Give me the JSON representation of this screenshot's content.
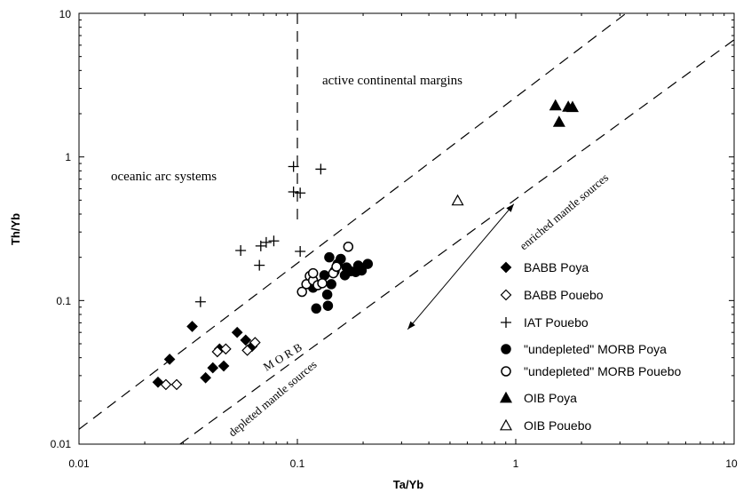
{
  "chart_data": {
    "type": "scatter",
    "xlabel": "Ta/Yb",
    "ylabel": "Th/Yb",
    "x_scale": "log",
    "y_scale": "log",
    "xlim": [
      0.01,
      10
    ],
    "ylim": [
      0.01,
      10
    ],
    "x_ticks": [
      "0.01",
      "0.1",
      "1",
      "10"
    ],
    "y_ticks": [
      "0.01",
      "0.1",
      "1",
      "10"
    ],
    "legend_position": "lower-right",
    "grid": false,
    "annotations": {
      "acm": "active continental margins",
      "oas": "oceanic arc systems",
      "morb": "M O R B",
      "enriched": "enriched mantle sources",
      "depleted": "depleted mantle sources"
    },
    "series": [
      {
        "name": "BABB Poya",
        "marker": "diamond-filled",
        "points": [
          [
            0.023,
            0.027
          ],
          [
            0.026,
            0.039
          ],
          [
            0.033,
            0.066
          ],
          [
            0.038,
            0.029
          ],
          [
            0.041,
            0.034
          ],
          [
            0.044,
            0.046
          ],
          [
            0.046,
            0.035
          ],
          [
            0.053,
            0.06
          ],
          [
            0.058,
            0.053
          ],
          [
            0.062,
            0.048
          ]
        ]
      },
      {
        "name": "BABB  Pouebo",
        "marker": "diamond-open",
        "points": [
          [
            0.025,
            0.026
          ],
          [
            0.028,
            0.026
          ],
          [
            0.043,
            0.044
          ],
          [
            0.047,
            0.046
          ],
          [
            0.059,
            0.045
          ],
          [
            0.064,
            0.051
          ]
        ]
      },
      {
        "name": "IAT Pouebo",
        "marker": "plus",
        "points": [
          [
            0.036,
            0.098
          ],
          [
            0.055,
            0.223
          ],
          [
            0.067,
            0.176
          ],
          [
            0.068,
            0.24
          ],
          [
            0.072,
            0.254
          ],
          [
            0.078,
            0.26
          ],
          [
            0.096,
            0.857
          ],
          [
            0.096,
            0.571
          ],
          [
            0.103,
            0.561
          ],
          [
            0.103,
            0.22
          ],
          [
            0.128,
            0.822
          ]
        ]
      },
      {
        "name": "\"undepleted\" MORB Poya",
        "marker": "circle-filled",
        "points": [
          [
            0.118,
            0.123
          ],
          [
            0.122,
            0.088
          ],
          [
            0.138,
            0.092
          ],
          [
            0.137,
            0.11
          ],
          [
            0.133,
            0.15
          ],
          [
            0.143,
            0.13
          ],
          [
            0.148,
            0.16
          ],
          [
            0.153,
            0.18
          ],
          [
            0.158,
            0.195
          ],
          [
            0.165,
            0.15
          ],
          [
            0.168,
            0.17
          ],
          [
            0.175,
            0.16
          ],
          [
            0.185,
            0.158
          ],
          [
            0.19,
            0.175
          ],
          [
            0.197,
            0.162
          ],
          [
            0.21,
            0.18
          ],
          [
            0.14,
            0.2
          ]
        ]
      },
      {
        "name": "\"undepleted\" MORB Pouebo",
        "marker": "circle-open",
        "points": [
          [
            0.105,
            0.115
          ],
          [
            0.11,
            0.13
          ],
          [
            0.114,
            0.148
          ],
          [
            0.118,
            0.138
          ],
          [
            0.124,
            0.128
          ],
          [
            0.13,
            0.132
          ],
          [
            0.146,
            0.155
          ],
          [
            0.151,
            0.172
          ],
          [
            0.171,
            0.237
          ],
          [
            0.118,
            0.155
          ]
        ]
      },
      {
        "name": "OIB Poya",
        "marker": "triangle-filled",
        "points": [
          [
            1.52,
            2.28
          ],
          [
            1.58,
            1.75
          ],
          [
            1.74,
            2.23
          ],
          [
            1.82,
            2.22
          ]
        ]
      },
      {
        "name": "OIB Pouebo",
        "marker": "triangle-open",
        "points": [
          [
            0.542,
            0.496
          ]
        ]
      }
    ]
  }
}
